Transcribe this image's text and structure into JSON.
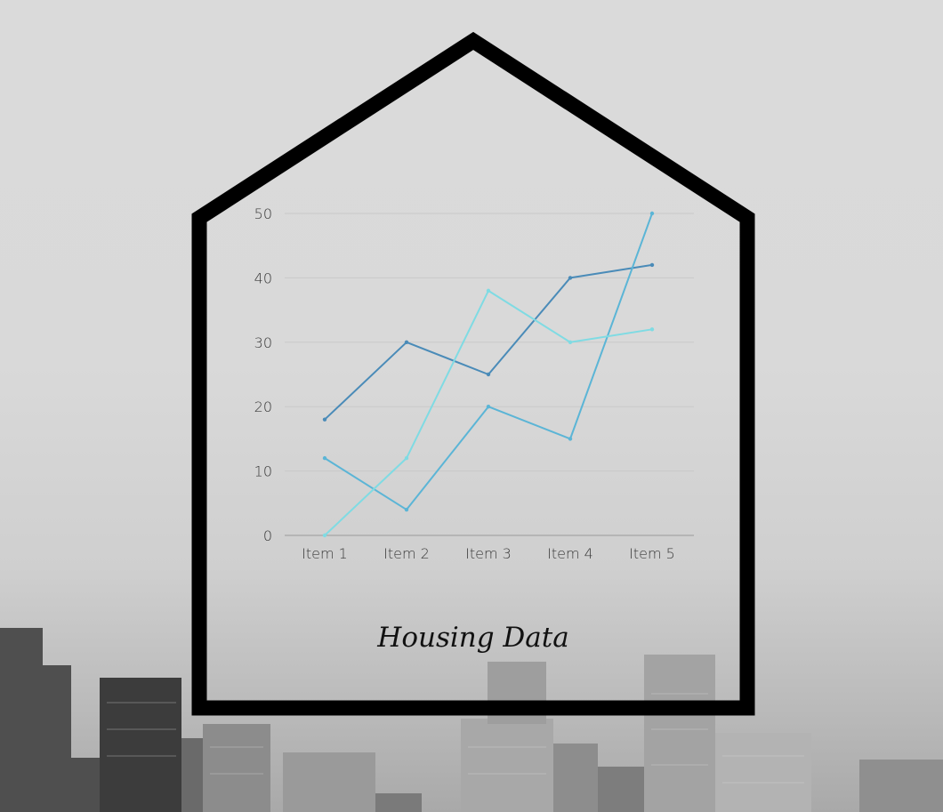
{
  "chart_data": {
    "type": "line",
    "title": "Housing Data",
    "categories": [
      "Item 1",
      "Item 2",
      "Item 3",
      "Item 4",
      "Item 5"
    ],
    "series": [
      {
        "values": [
          18,
          30,
          25,
          40,
          42
        ],
        "color": "#4a8bb8"
      },
      {
        "values": [
          12,
          4,
          20,
          15,
          50
        ],
        "color": "#5bb5d6"
      },
      {
        "values": [
          0,
          12,
          38,
          30,
          32
        ],
        "color": "#7fdbe3"
      }
    ],
    "ylim": [
      0,
      50
    ],
    "yticks": [
      0,
      10,
      20,
      30,
      40,
      50
    ],
    "grid": true,
    "legend": "none"
  },
  "colors": {
    "frame": "#000000",
    "gridline": "#c9c9c9",
    "axis": "#9a9a9a"
  },
  "icons": {
    "frame": "house-outline-icon",
    "background": "city-skyline-photo"
  }
}
